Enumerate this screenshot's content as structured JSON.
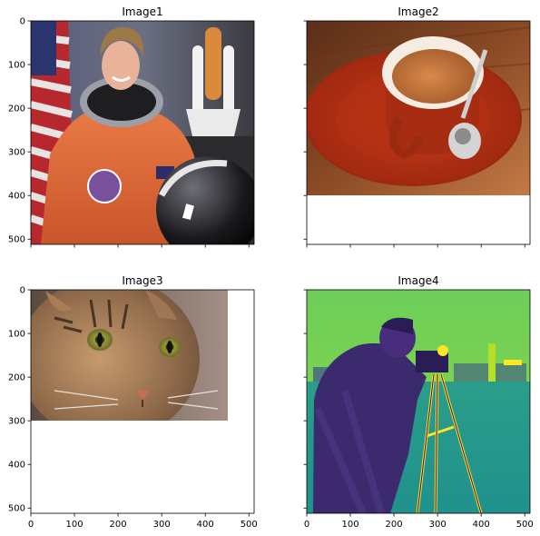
{
  "chart_data": [
    {
      "type": "image",
      "title": "Image1",
      "image_extent": {
        "width": 512,
        "height": 512
      },
      "xlim": [
        0,
        512
      ],
      "ylim": [
        512,
        0
      ],
      "xticks": [],
      "yticks": [
        0,
        100,
        200,
        300,
        400,
        500
      ],
      "xtick_labels_shown": false,
      "ytick_labels_shown": true,
      "content": "astronaut in orange flight suit with flag and space shuttle"
    },
    {
      "type": "image",
      "title": "Image2",
      "image_extent": {
        "width": 512,
        "height": 400
      },
      "xlim": [
        0,
        512
      ],
      "ylim": [
        512,
        0
      ],
      "xticks": [],
      "yticks": [
        0,
        100,
        200,
        300,
        400,
        500
      ],
      "xtick_labels_shown": false,
      "ytick_labels_shown": false,
      "content": "red coffee cup with saucer and spoon"
    },
    {
      "type": "image",
      "title": "Image3",
      "image_extent": {
        "width": 451,
        "height": 300
      },
      "xlim": [
        0,
        512
      ],
      "ylim": [
        512,
        0
      ],
      "xticks": [
        0,
        100,
        200,
        300,
        400,
        500
      ],
      "yticks": [
        0,
        100,
        200,
        300,
        400,
        500
      ],
      "xtick_labels_shown": true,
      "ytick_labels_shown": true,
      "content": "tabby cat face"
    },
    {
      "type": "image",
      "title": "Image4",
      "image_extent": {
        "width": 512,
        "height": 512
      },
      "xlim": [
        0,
        512
      ],
      "ylim": [
        512,
        0
      ],
      "xticks": [
        0,
        100,
        200,
        300,
        400,
        500
      ],
      "yticks": [
        0,
        100,
        200,
        300,
        400,
        500
      ],
      "xtick_labels_shown": true,
      "ytick_labels_shown": false,
      "colormap": "viridis",
      "content": "cameraman with tripod on grass field"
    }
  ]
}
